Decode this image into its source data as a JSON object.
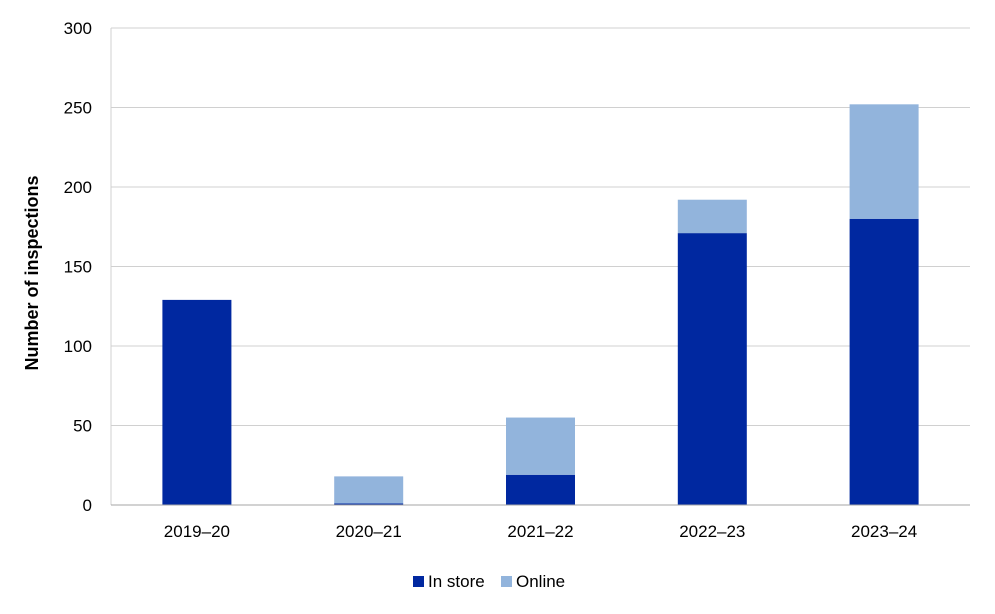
{
  "chart_data": {
    "type": "bar",
    "stacked": true,
    "categories": [
      "2019–20",
      "2020–21",
      "2021–22",
      "2022–23",
      "2023–24"
    ],
    "series": [
      {
        "name": "In store",
        "values": [
          129,
          1,
          19,
          171,
          180
        ],
        "color": "#0028A0"
      },
      {
        "name": "Online",
        "values": [
          0,
          17,
          36,
          21,
          72
        ],
        "color": "#92B4DC"
      }
    ],
    "ylabel": "Number of inspections",
    "xlabel": "",
    "ylim": [
      0,
      300
    ],
    "yticks": [
      0,
      50,
      100,
      150,
      200,
      250,
      300
    ],
    "grid": true,
    "legend_position": "bottom"
  }
}
